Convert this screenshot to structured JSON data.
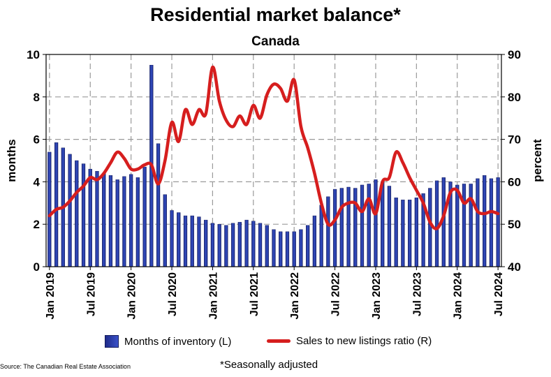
{
  "title": "Residential market balance*",
  "subtitle": "Canada",
  "source": "Source: The Canadian Real Estate Association",
  "footnote": "*Seasonally adjusted",
  "colors": {
    "bars": "#2a3fa8",
    "line": "#d61e1e",
    "grid": "#9a9a9a"
  },
  "chart_data": {
    "type": "bar",
    "title": "Residential market balance*",
    "subtitle": "Canada",
    "left_axis": {
      "label": "months",
      "ylim": [
        0,
        10
      ],
      "ticks": [
        "0",
        "2",
        "4",
        "6",
        "8",
        "10"
      ]
    },
    "right_axis": {
      "label": "percent",
      "ylim": [
        40,
        90
      ],
      "ticks": [
        "40",
        "50",
        "60",
        "70",
        "80",
        "90"
      ]
    },
    "x_tick_labels": [
      "Jan 2019",
      "Jul 2019",
      "Jan 2020",
      "Jul 2020",
      "Jan 2021",
      "Jul 2021",
      "Jan 2022",
      "Jul 2022",
      "Jan 2023",
      "Jul 2023",
      "Jan 2024",
      "Jul 2024"
    ],
    "grid": true,
    "legend_position": "bottom",
    "x": [
      "2019-01",
      "2019-02",
      "2019-03",
      "2019-04",
      "2019-05",
      "2019-06",
      "2019-07",
      "2019-08",
      "2019-09",
      "2019-10",
      "2019-11",
      "2019-12",
      "2020-01",
      "2020-02",
      "2020-03",
      "2020-04",
      "2020-05",
      "2020-06",
      "2020-07",
      "2020-08",
      "2020-09",
      "2020-10",
      "2020-11",
      "2020-12",
      "2021-01",
      "2021-02",
      "2021-03",
      "2021-04",
      "2021-05",
      "2021-06",
      "2021-07",
      "2021-08",
      "2021-09",
      "2021-10",
      "2021-11",
      "2021-12",
      "2022-01",
      "2022-02",
      "2022-03",
      "2022-04",
      "2022-05",
      "2022-06",
      "2022-07",
      "2022-08",
      "2022-09",
      "2022-10",
      "2022-11",
      "2022-12",
      "2023-01",
      "2023-02",
      "2023-03",
      "2023-04",
      "2023-05",
      "2023-06",
      "2023-07",
      "2023-08",
      "2023-09",
      "2023-10",
      "2023-11",
      "2023-12",
      "2024-01",
      "2024-02",
      "2024-03",
      "2024-04",
      "2024-05",
      "2024-06",
      "2024-07"
    ],
    "series": [
      {
        "name": "Months of inventory (L)",
        "type": "bar",
        "axis": "left",
        "values": [
          5.4,
          5.85,
          5.6,
          5.3,
          5.0,
          4.85,
          4.6,
          4.5,
          4.4,
          4.3,
          4.1,
          4.25,
          4.35,
          4.2,
          4.7,
          9.5,
          5.8,
          3.4,
          2.65,
          2.55,
          2.4,
          2.4,
          2.35,
          2.2,
          2.05,
          2.0,
          1.95,
          2.05,
          2.1,
          2.2,
          2.15,
          2.05,
          1.95,
          1.75,
          1.65,
          1.65,
          1.65,
          1.75,
          1.95,
          2.4,
          2.9,
          3.3,
          3.65,
          3.7,
          3.75,
          3.7,
          3.85,
          3.9,
          4.1,
          4.0,
          3.8,
          3.25,
          3.15,
          3.15,
          3.25,
          3.45,
          3.7,
          4.05,
          4.2,
          4.0,
          3.85,
          3.9,
          3.9,
          4.15,
          4.3,
          4.15,
          4.2
        ]
      },
      {
        "name": "Sales to new listings ratio (R)",
        "type": "line",
        "axis": "right",
        "values": [
          52,
          53.5,
          54,
          55.5,
          57.5,
          59,
          61,
          60.5,
          62,
          64.5,
          67,
          65.5,
          63,
          63,
          64,
          64,
          59.5,
          65,
          74,
          69.5,
          77,
          73.5,
          77,
          76,
          87,
          79,
          74.5,
          73,
          75.5,
          73.5,
          78,
          75,
          80.5,
          83,
          82,
          79,
          84,
          73,
          68,
          62,
          55,
          50,
          51,
          54,
          55,
          55,
          53,
          56,
          52.5,
          60,
          61,
          67,
          64.5,
          61,
          58,
          55,
          50.5,
          49,
          52,
          57.5,
          58,
          55,
          56,
          53,
          52.5,
          53,
          52.5
        ]
      }
    ]
  }
}
